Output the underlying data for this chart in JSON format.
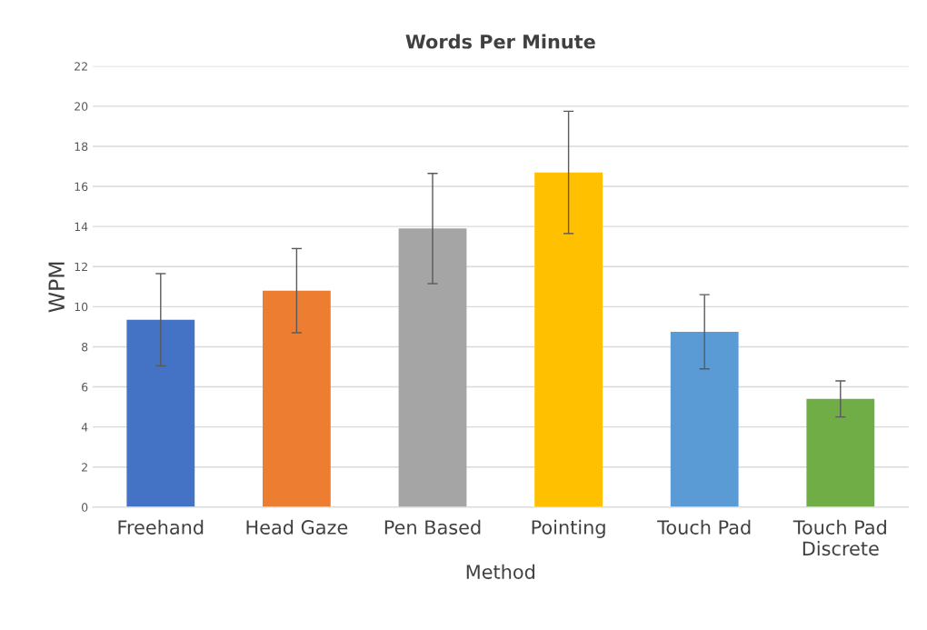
{
  "chart_data": {
    "type": "bar",
    "title": "Words Per Minute",
    "xlabel": "Method",
    "ylabel": "WPM",
    "categories": [
      "Freehand",
      "Head Gaze",
      "Pen Based",
      "Pointing",
      "Touch Pad",
      "Touch Pad\nDiscrete"
    ],
    "values": [
      9.35,
      10.8,
      13.9,
      16.7,
      8.75,
      5.4
    ],
    "errors": [
      2.3,
      2.1,
      2.75,
      3.05,
      1.85,
      0.9
    ],
    "colors": [
      "#4472c4",
      "#ed7d31",
      "#a5a5a5",
      "#ffc000",
      "#5b9bd5",
      "#70ad47"
    ],
    "ylim": [
      0,
      22
    ],
    "yticks": [
      0,
      2,
      4,
      6,
      8,
      10,
      12,
      14,
      16,
      18,
      20,
      22
    ],
    "grid": "y"
  }
}
